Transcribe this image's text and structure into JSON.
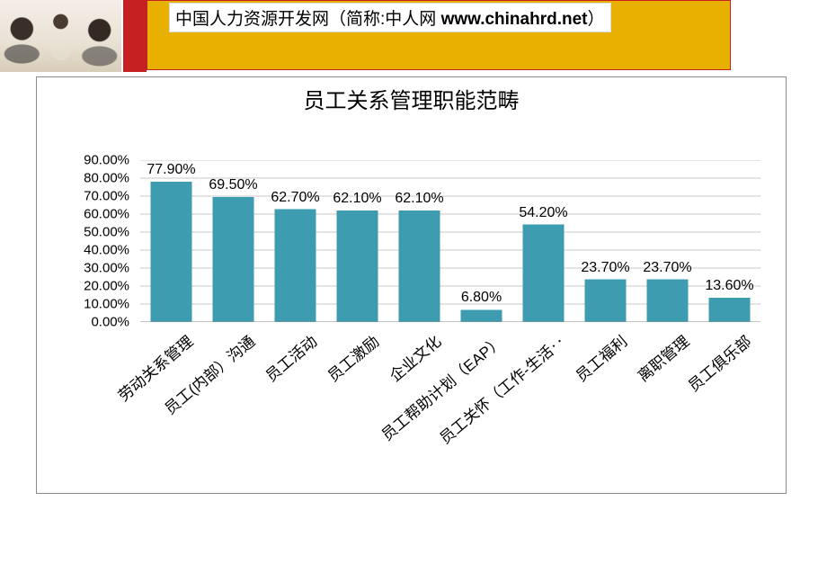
{
  "header": {
    "red_color": "#c62122",
    "gold_bg": "#e8b000",
    "gold_border": "#c62122",
    "title_prefix": "中国人力资源开发网（简称:中人网 ",
    "title_bold": "www.chinahrd.net",
    "title_suffix": "）"
  },
  "chart": {
    "type": "bar",
    "title": "员工关系管理职能范畴",
    "title_fontsize": 24,
    "categories": [
      "劳动关系管理",
      "员工(内部）沟通",
      "员工活动",
      "员工激励",
      "企业文化",
      "员工帮助计划（EAP）",
      "员工关怀（工作-生活‥",
      "员工福利",
      "离职管理",
      "员工俱乐部"
    ],
    "values": [
      77.9,
      69.5,
      62.7,
      62.1,
      62.1,
      6.8,
      54.2,
      23.7,
      23.7,
      13.6
    ],
    "value_labels": [
      "77.90%",
      "69.50%",
      "62.70%",
      "62.10%",
      "62.10%",
      "6.80%",
      "54.20%",
      "23.70%",
      "23.70%",
      "13.60%"
    ],
    "bar_color": "#3e9cb0",
    "grid_color": "#c9c9c9",
    "axis_color": "#8a8a8a",
    "background_color": "#ffffff",
    "ylim": [
      0,
      90
    ],
    "ytick_step": 10,
    "ytick_format_suffix": ".00%",
    "bar_width_ratio": 0.66,
    "tick_fontsize": 15,
    "datalabel_fontsize": 16,
    "category_fontsize": 17,
    "category_rotation_deg": -40,
    "frame_border_color": "#8a8a8a"
  }
}
